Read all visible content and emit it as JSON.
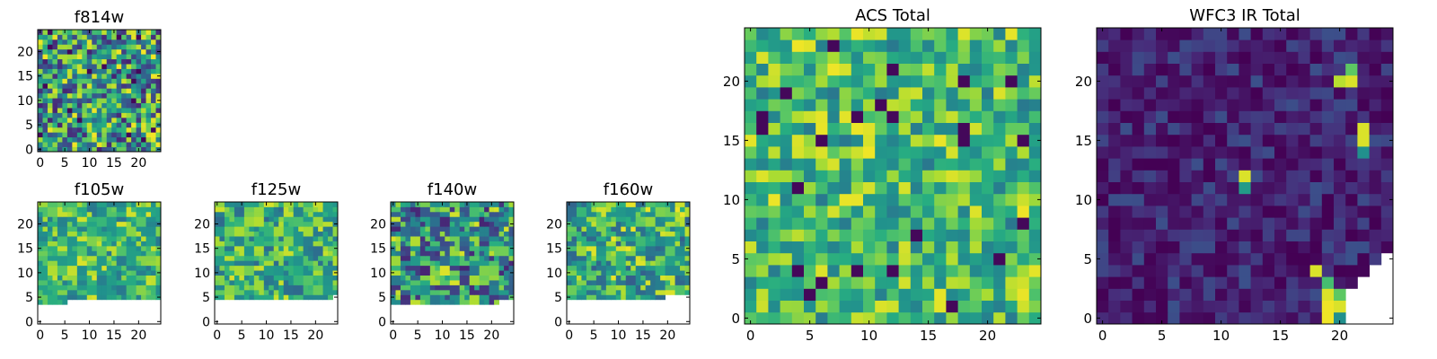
{
  "chart_data": [
    {
      "type": "heatmap",
      "title": "f814w",
      "x_ticks": [
        "0",
        "5",
        "10",
        "15",
        "20"
      ],
      "y_ticks": [
        "0",
        "5",
        "10",
        "15",
        "20"
      ],
      "xlim": [
        0,
        24
      ],
      "ylim": [
        0,
        24
      ],
      "grid_size": [
        25,
        25
      ],
      "mask_rows_below": [],
      "colormap": "viridis",
      "texture": "fine-noise",
      "value_range": [
        0.1,
        0.99
      ]
    },
    {
      "type": "heatmap",
      "title": "f105w",
      "x_ticks": [
        "0",
        "5",
        "10",
        "15",
        "20"
      ],
      "y_ticks": [
        "0",
        "5",
        "10",
        "15",
        "20"
      ],
      "xlim": [
        0,
        24
      ],
      "ylim": [
        0,
        24
      ],
      "grid_size": [
        25,
        25
      ],
      "mask_rows_below": [
        4,
        4,
        4,
        4,
        4,
        4,
        5,
        5,
        5,
        5,
        5,
        5,
        5,
        5,
        5,
        5,
        5,
        5,
        5,
        5,
        5,
        5,
        5,
        5,
        5
      ],
      "colormap": "viridis",
      "texture": "blocky",
      "value_range": [
        0.4,
        0.95
      ]
    },
    {
      "type": "heatmap",
      "title": "f125w",
      "x_ticks": [
        "0",
        "5",
        "10",
        "15",
        "20"
      ],
      "y_ticks": [
        "0",
        "5",
        "10",
        "15",
        "20"
      ],
      "xlim": [
        0,
        24
      ],
      "ylim": [
        0,
        24
      ],
      "grid_size": [
        25,
        25
      ],
      "mask_rows_below": [
        5,
        5,
        5,
        5,
        5,
        5,
        5,
        5,
        5,
        5,
        5,
        5,
        5,
        5,
        5,
        5,
        5,
        5,
        5,
        5,
        5,
        5,
        5,
        5,
        6
      ],
      "colormap": "viridis",
      "texture": "blocky",
      "value_range": [
        0.35,
        0.95
      ]
    },
    {
      "type": "heatmap",
      "title": "f140w",
      "x_ticks": [
        "0",
        "5",
        "10",
        "15",
        "20"
      ],
      "y_ticks": [
        "0",
        "5",
        "10",
        "15",
        "20"
      ],
      "xlim": [
        0,
        24
      ],
      "ylim": [
        0,
        24
      ],
      "grid_size": [
        25,
        25
      ],
      "mask_rows_below": [
        4,
        4,
        4,
        4,
        4,
        4,
        4,
        4,
        4,
        4,
        4,
        4,
        4,
        4,
        4,
        4,
        4,
        4,
        4,
        4,
        4,
        4,
        5,
        5,
        5
      ],
      "colormap": "viridis",
      "texture": "blocky",
      "value_range": [
        0.1,
        0.95
      ]
    },
    {
      "type": "heatmap",
      "title": "f160w",
      "x_ticks": [
        "0",
        "5",
        "10",
        "15",
        "20"
      ],
      "y_ticks": [
        "0",
        "5",
        "10",
        "15",
        "20"
      ],
      "xlim": [
        0,
        24
      ],
      "ylim": [
        0,
        24
      ],
      "grid_size": [
        25,
        25
      ],
      "mask_rows_below": [
        5,
        5,
        5,
        5,
        5,
        5,
        5,
        5,
        5,
        5,
        5,
        5,
        5,
        5,
        5,
        5,
        5,
        5,
        5,
        5,
        6,
        6,
        6,
        6,
        6
      ],
      "colormap": "viridis",
      "texture": "blocky",
      "value_range": [
        0.3,
        0.98
      ]
    },
    {
      "type": "heatmap",
      "title": "ACS Total",
      "x_ticks": [
        "0",
        "5",
        "10",
        "15",
        "20"
      ],
      "y_ticks": [
        "0",
        "5",
        "10",
        "15",
        "20"
      ],
      "xlim": [
        0,
        24
      ],
      "ylim": [
        0,
        24
      ],
      "grid_size": [
        25,
        25
      ],
      "mask_rows_below": [],
      "colormap": "viridis",
      "texture": "fine-noise",
      "value_range": [
        0.4,
        0.98
      ]
    },
    {
      "type": "heatmap",
      "title": "WFC3 IR Total",
      "x_ticks": [
        "0",
        "5",
        "10",
        "15",
        "20"
      ],
      "y_ticks": [
        "0",
        "5",
        "10",
        "15",
        "20"
      ],
      "xlim": [
        0,
        24
      ],
      "ylim": [
        0,
        24
      ],
      "grid_size": [
        25,
        25
      ],
      "mask_rows_below": [
        0,
        0,
        0,
        0,
        0,
        0,
        0,
        0,
        0,
        0,
        0,
        0,
        0,
        0,
        0,
        0,
        0,
        0,
        0,
        0,
        0,
        3,
        4,
        5,
        6
      ],
      "colormap": "viridis",
      "texture": "dark-with-hotspots",
      "value_range": [
        0.0,
        0.25
      ],
      "hotspots": [
        {
          "x": 12,
          "y": 12,
          "value": 0.95
        },
        {
          "x": 12,
          "y": 11,
          "value": 0.55
        },
        {
          "x": 21,
          "y": 21,
          "value": 0.75
        },
        {
          "x": 21,
          "y": 20,
          "value": 0.95
        },
        {
          "x": 20,
          "y": 20,
          "value": 0.9
        },
        {
          "x": 22,
          "y": 16,
          "value": 0.95
        },
        {
          "x": 22,
          "y": 15,
          "value": 0.95
        },
        {
          "x": 22,
          "y": 14,
          "value": 0.5
        },
        {
          "x": 18,
          "y": 4,
          "value": 0.95
        },
        {
          "x": 19,
          "y": 3,
          "value": 0.7
        },
        {
          "x": 19,
          "y": 2,
          "value": 0.95
        },
        {
          "x": 19,
          "y": 1,
          "value": 0.98
        },
        {
          "x": 19,
          "y": 0,
          "value": 0.98
        },
        {
          "x": 20,
          "y": 1,
          "value": 0.95
        },
        {
          "x": 20,
          "y": 2,
          "value": 0.75
        },
        {
          "x": 20,
          "y": 0,
          "value": 0.5
        }
      ]
    }
  ]
}
